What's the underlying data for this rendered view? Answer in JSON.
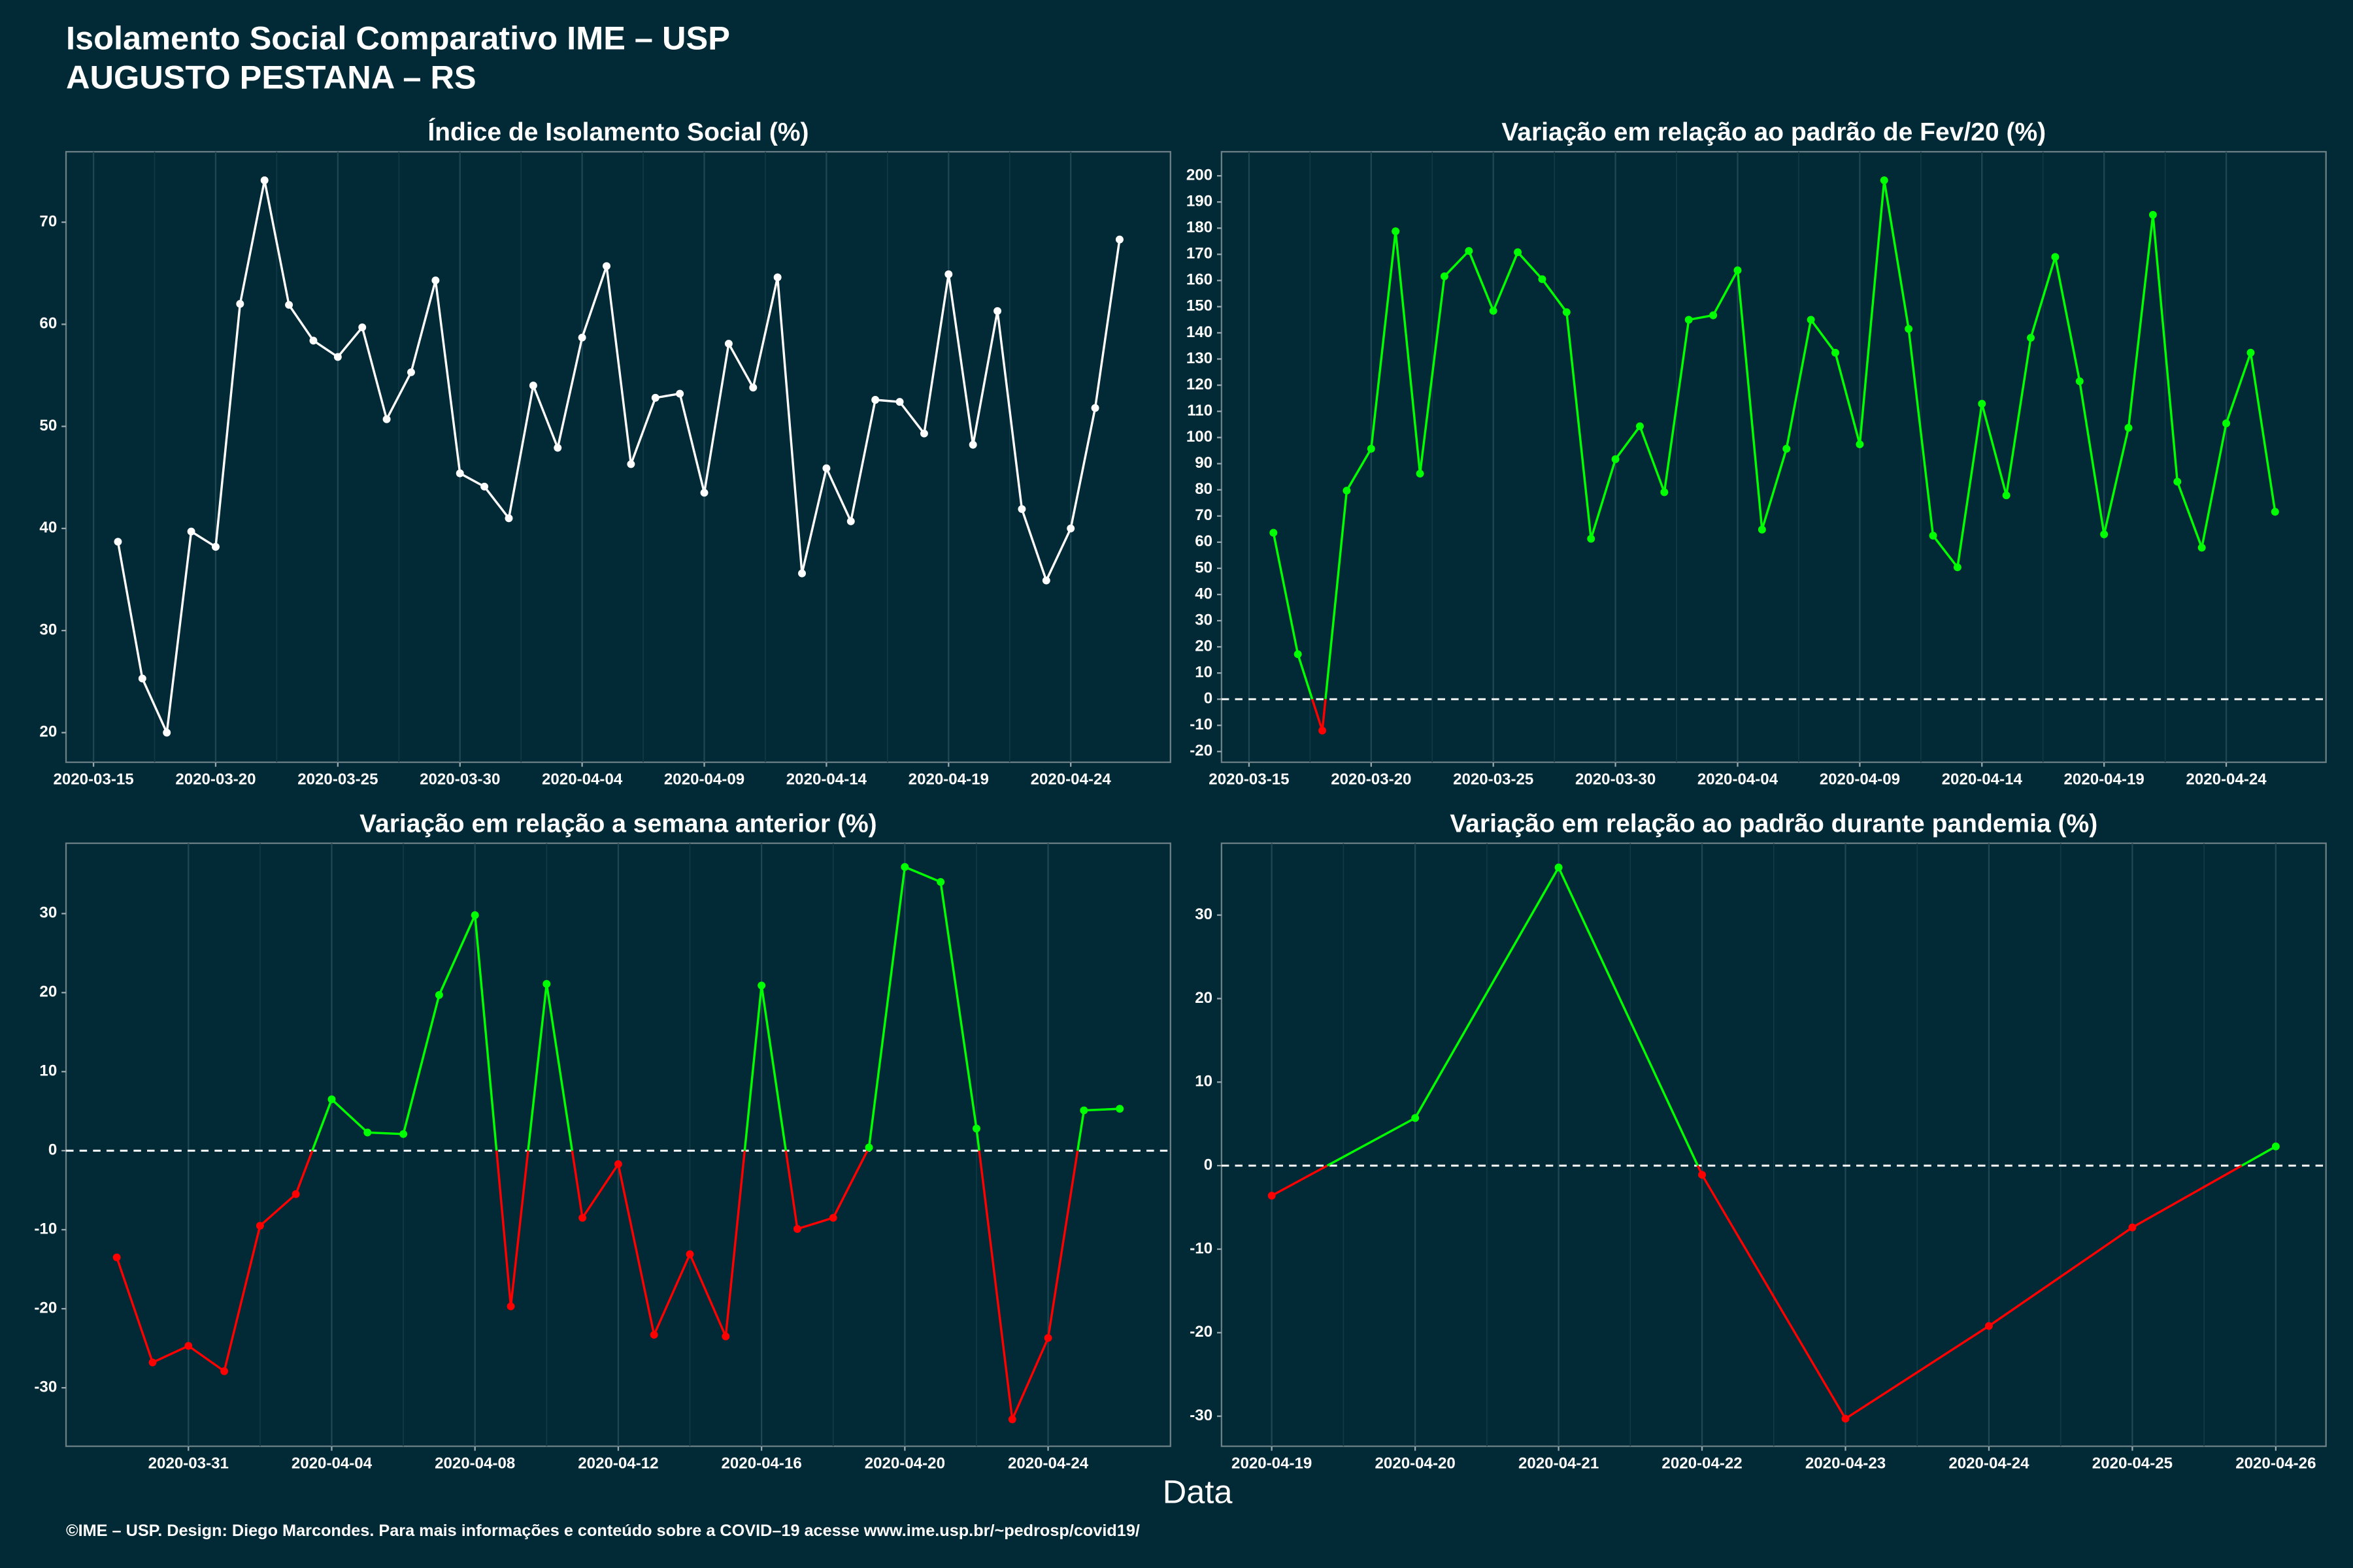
{
  "title": "Isolamento Social Comparativo IME – USP",
  "subtitle": "AUGUSTO PESTANA – RS",
  "x_label": "Data",
  "footer": "©IME – USP. Design: Diego Marcondes. Para mais informações e conteúdo sobre a COVID–19 acesse www.ime.usp.br/~pedrosp/covid19/",
  "chart_data": [
    {
      "type": "line",
      "title": "Índice de Isolamento Social (%)",
      "color": "#ffffff",
      "grid": "x",
      "x": [
        "2020-03-16",
        "2020-03-17",
        "2020-03-18",
        "2020-03-19",
        "2020-03-20",
        "2020-03-21",
        "2020-03-22",
        "2020-03-23",
        "2020-03-24",
        "2020-03-25",
        "2020-03-26",
        "2020-03-27",
        "2020-03-28",
        "2020-03-29",
        "2020-03-30",
        "2020-03-31",
        "2020-04-01",
        "2020-04-02",
        "2020-04-03",
        "2020-04-04",
        "2020-04-05",
        "2020-04-06",
        "2020-04-07",
        "2020-04-08",
        "2020-04-09",
        "2020-04-10",
        "2020-04-11",
        "2020-04-12",
        "2020-04-13",
        "2020-04-14",
        "2020-04-15",
        "2020-04-16",
        "2020-04-17",
        "2020-04-18",
        "2020-04-19",
        "2020-04-20",
        "2020-04-21",
        "2020-04-22",
        "2020-04-23",
        "2020-04-24",
        "2020-04-25",
        "2020-04-26"
      ],
      "values": [
        38.7,
        25.3,
        20,
        39.7,
        38.2,
        62,
        74.1,
        61.9,
        58.4,
        56.8,
        59.7,
        50.7,
        55.3,
        64.3,
        45.4,
        44.1,
        41,
        54,
        47.9,
        58.7,
        65.7,
        46.3,
        52.8,
        53.2,
        43.5,
        58.1,
        53.8,
        64.6,
        35.6,
        45.9,
        40.7,
        52.6,
        52.4,
        49.3,
        64.9,
        48.2,
        61.3,
        41.9,
        34.9,
        40,
        51.8,
        68.3
      ],
      "xlim": [
        "2020-03-13T21:00",
        "2020-04-28T02:00"
      ],
      "xticks": [
        "2020-03-15",
        "2020-03-20",
        "2020-03-25",
        "2020-03-30",
        "2020-04-04",
        "2020-04-09",
        "2020-04-14",
        "2020-04-19",
        "2020-04-24"
      ],
      "ylim": [
        17.1,
        76.9
      ],
      "yticks": [
        20,
        30,
        40,
        50,
        60,
        70
      ]
    },
    {
      "type": "line",
      "title": "Variação em relação ao padrão de Fev/20 (%)",
      "color_above": "#00ff00",
      "color_below": "#ff0000",
      "zero_line": true,
      "grid": "x",
      "x": [
        "2020-03-16",
        "2020-03-17",
        "2020-03-18",
        "2020-03-19",
        "2020-03-20",
        "2020-03-21",
        "2020-03-22",
        "2020-03-23",
        "2020-03-24",
        "2020-03-25",
        "2020-03-26",
        "2020-03-27",
        "2020-03-28",
        "2020-03-29",
        "2020-03-30",
        "2020-03-31",
        "2020-04-01",
        "2020-04-02",
        "2020-04-03",
        "2020-04-04",
        "2020-04-05",
        "2020-04-06",
        "2020-04-07",
        "2020-04-08",
        "2020-04-09",
        "2020-04-10",
        "2020-04-11",
        "2020-04-12",
        "2020-04-13",
        "2020-04-14",
        "2020-04-15",
        "2020-04-16",
        "2020-04-17",
        "2020-04-18",
        "2020-04-19",
        "2020-04-20",
        "2020-04-21",
        "2020-04-22",
        "2020-04-23",
        "2020-04-24",
        "2020-04-25",
        "2020-04-26"
      ],
      "values": [
        63.6,
        17.2,
        -12,
        79.7,
        95.7,
        178.8,
        86.2,
        161.6,
        171.3,
        148.4,
        170.8,
        160.5,
        147.9,
        61.3,
        91.7,
        104.3,
        79.1,
        145,
        146.7,
        163.9,
        64.8,
        95.7,
        145,
        132.4,
        97.4,
        198.3,
        141.5,
        62.5,
        50.4,
        112.9,
        77.9,
        138.1,
        169,
        121.5,
        63,
        103.7,
        185.1,
        83.1,
        57.9,
        105.4,
        132.4,
        71.6
      ],
      "xlim": [
        "2020-03-13T21:00",
        "2020-04-28T02:00"
      ],
      "xticks": [
        "2020-03-15",
        "2020-03-20",
        "2020-03-25",
        "2020-03-30",
        "2020-04-04",
        "2020-04-09",
        "2020-04-14",
        "2020-04-19",
        "2020-04-24"
      ],
      "ylim": [
        -24.1,
        209.2
      ],
      "yticks": [
        -20,
        -10,
        0,
        10,
        20,
        30,
        40,
        50,
        60,
        70,
        80,
        90,
        100,
        110,
        120,
        130,
        140,
        150,
        160,
        170,
        180,
        190,
        200
      ]
    },
    {
      "type": "line",
      "title": "Variação em relação a semana anterior (%)",
      "color_above": "#00ff00",
      "color_below": "#ff0000",
      "zero_line": true,
      "grid": "x",
      "x": [
        "2020-03-29",
        "2020-03-30",
        "2020-03-31",
        "2020-04-01",
        "2020-04-02",
        "2020-04-03",
        "2020-04-04",
        "2020-04-05",
        "2020-04-06",
        "2020-04-07",
        "2020-04-08",
        "2020-04-09",
        "2020-04-10",
        "2020-04-11",
        "2020-04-12",
        "2020-04-13",
        "2020-04-14",
        "2020-04-15",
        "2020-04-16",
        "2020-04-17",
        "2020-04-18",
        "2020-04-19",
        "2020-04-20",
        "2020-04-21",
        "2020-04-22",
        "2020-04-23",
        "2020-04-24",
        "2020-04-25",
        "2020-04-26"
      ],
      "values": [
        -13.5,
        -26.8,
        -24.7,
        -27.9,
        -9.5,
        -5.5,
        6.5,
        2.3,
        2.1,
        19.7,
        29.8,
        -19.7,
        21.1,
        -8.5,
        -1.7,
        -23.3,
        -13.1,
        -23.5,
        20.9,
        -9.9,
        -8.5,
        0.4,
        35.9,
        34,
        2.8,
        -34,
        -23.7,
        5.1,
        5.3
      ],
      "xlim": [
        "2020-03-27T14:00",
        "2020-04-27T10:00"
      ],
      "xticks": [
        "2020-03-31",
        "2020-04-04",
        "2020-04-08",
        "2020-04-12",
        "2020-04-16",
        "2020-04-20",
        "2020-04-24"
      ],
      "ylim": [
        -37.4,
        38.9
      ],
      "yticks": [
        -30,
        -20,
        -10,
        0,
        10,
        20,
        30
      ]
    },
    {
      "type": "line",
      "title": "Variação em relação ao padrão durante pandemia (%)",
      "color_above": "#00ff00",
      "color_below": "#ff0000",
      "zero_line": true,
      "grid": "x",
      "x": [
        "2020-04-19",
        "2020-04-20",
        "2020-04-21",
        "2020-04-22",
        "2020-04-23",
        "2020-04-24",
        "2020-04-25",
        "2020-04-26"
      ],
      "values": [
        -3.6,
        5.7,
        35.7,
        -1.1,
        -30.3,
        -19.2,
        -7.4,
        2.3
      ],
      "xlim": [
        "2020-04-18T15:36",
        "2020-04-26T08:24"
      ],
      "xticks": [
        "2020-04-19",
        "2020-04-20",
        "2020-04-21",
        "2020-04-22",
        "2020-04-23",
        "2020-04-24",
        "2020-04-25",
        "2020-04-26"
      ],
      "ylim": [
        -33.6,
        38.6
      ],
      "yticks": [
        -30,
        -20,
        -10,
        0,
        10,
        20,
        30
      ]
    }
  ]
}
